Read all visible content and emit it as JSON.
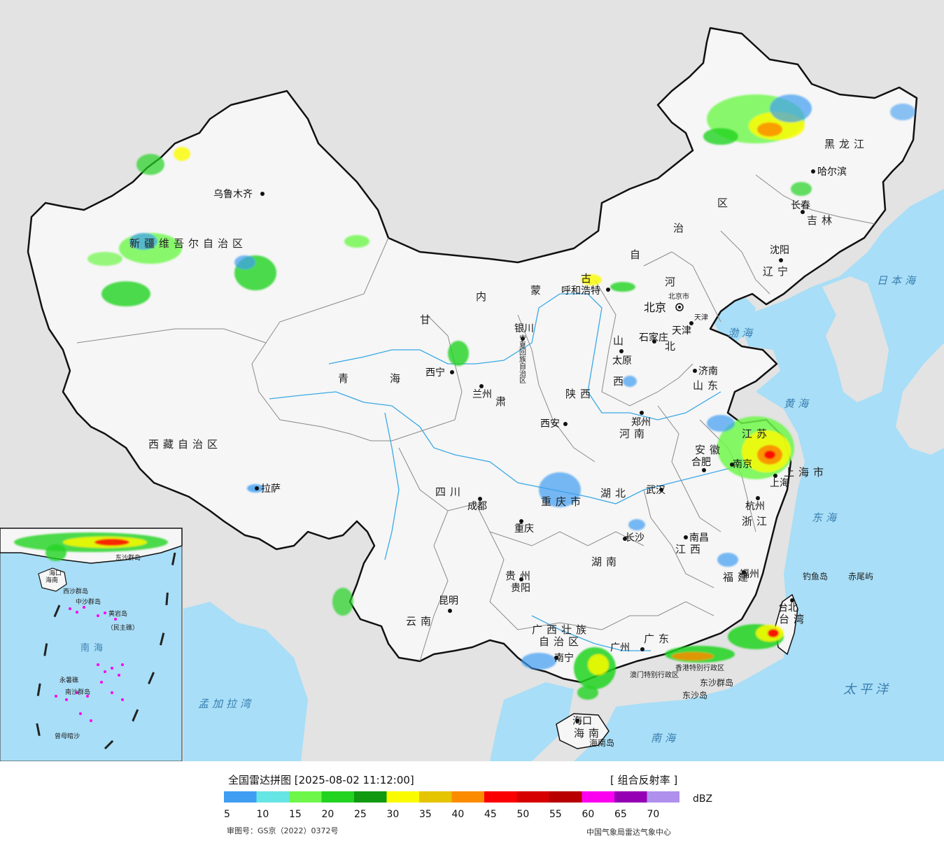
{
  "legend": {
    "title": "全国雷达拼图 [2025-08-02 11:12:00]",
    "product": "[ 组合反射率 ]",
    "unit": "dBZ",
    "ticks": [
      "5",
      "10",
      "15",
      "20",
      "25",
      "30",
      "35",
      "40",
      "45",
      "50",
      "55",
      "60",
      "65",
      "70"
    ],
    "colors": [
      "#3f9df2",
      "#66e5e5",
      "#6ef74a",
      "#22d322",
      "#119911",
      "#fbfb00",
      "#e5c400",
      "#fb8c00",
      "#fb0000",
      "#d60000",
      "#b80000",
      "#fb00f0",
      "#9600b4",
      "#af90ec"
    ]
  },
  "approval": "审图号：GS京（2022）0372号",
  "source": "中国气象局雷达气象中心",
  "cities": [
    "乌鲁木齐",
    "拉萨",
    "西宁",
    "兰州",
    "银川",
    "呼和浩特",
    "北京",
    "天津",
    "石家庄",
    "太原",
    "济南",
    "郑州",
    "西安",
    "成都",
    "重庆",
    "贵阳",
    "昆明",
    "南宁",
    "广州",
    "长沙",
    "武汉",
    "南昌",
    "合肥",
    "南京",
    "上海",
    "杭州",
    "福州",
    "台北",
    "哈尔滨",
    "长春",
    "沈阳",
    "海口"
  ],
  "regions": {
    "xinjiang": "新疆维吾尔自治区",
    "xizang": "西藏自治区",
    "qinghai_a": "青",
    "qinghai_b": "海",
    "gansu_a": "甘",
    "gansu_b": "肃",
    "neimenggu": [
      "内",
      "蒙",
      "古",
      "自",
      "治",
      "区"
    ],
    "heilongjiang": "黑龙江",
    "jilin": "吉林",
    "liaoning": "辽宁",
    "hebei_a": "河",
    "hebei_b": "北",
    "shanxi_a": "山",
    "shanxi_b": "西",
    "shandong": "山东",
    "henan": "河南",
    "shaanxi": "陕西",
    "sichuan": "四川",
    "chongqing": "重庆市",
    "hubei": "湖北",
    "hunan": "湖南",
    "jiangxi": "江西",
    "anhui": "安徽",
    "jiangsu": "江苏",
    "shanghai": "上海市",
    "zhejiang": "浙江",
    "fujian": "福建",
    "guizhou": "贵州",
    "yunnan": "云南",
    "guangxi_a": "广西壮族",
    "guangxi_b": "自治区",
    "guangdong": "广东",
    "hainan": "海南",
    "taiwan": "台湾",
    "ningxia": "宁夏回族自治区",
    "beijingshi": "北京市",
    "tianjinshi": "天津",
    "xianggang": "香港特别行政区",
    "aomen": "澳门特别行政区",
    "shanghai2": "上海"
  },
  "seas": {
    "ribenhai": "日本海",
    "bohai": "渤海",
    "huanghai": "黄海",
    "donghai": "东海",
    "taipingyang": "太平洋",
    "nanhai": "南海",
    "mengjialawan": "孟加拉湾"
  },
  "islands": {
    "diaoyu": "钓鱼岛",
    "chiwei": "赤尾屿",
    "dongsha_qd": "东沙群岛",
    "dongsha_d": "东沙岛",
    "hainandao": "海南岛"
  },
  "inset": {
    "nanhai": "南海",
    "xisha": "西沙群岛",
    "zhongsha": "中沙群岛",
    "huangyan": "黄岩岛",
    "minzhu": "（民主礁）",
    "nansha": "南沙群岛",
    "yongshu": "永暑礁",
    "zengmu": "曾母暗沙",
    "dongsha": "东沙群岛",
    "haikou": "海口",
    "hainan": "海南"
  },
  "colors_map": {
    "sea": "#a8def7",
    "foreign_land": "#e3e3e3",
    "china_land": "#f6f6f6",
    "border": "#111111",
    "river": "#3aa9e6"
  }
}
